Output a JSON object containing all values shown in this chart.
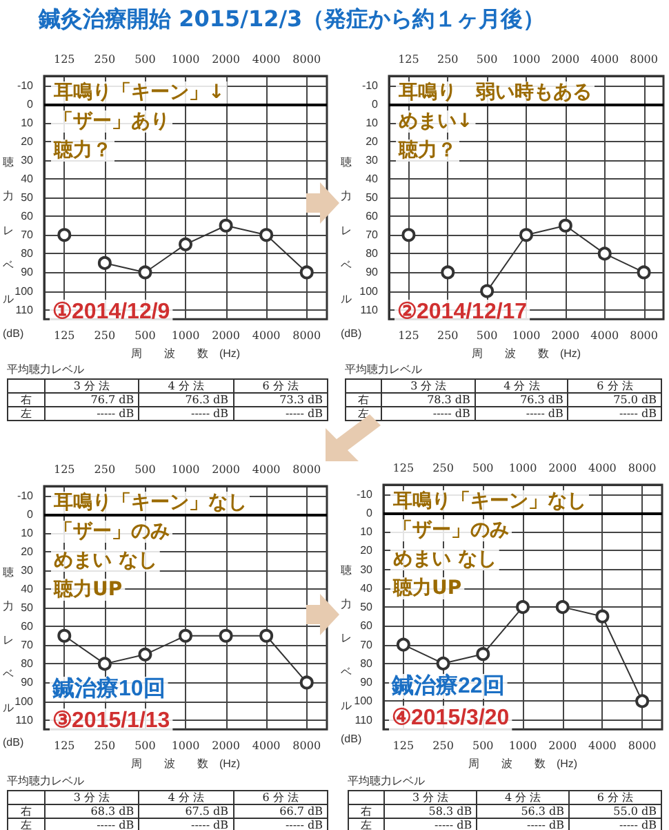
{
  "chart_data": [
    {
      "type": "other",
      "title": "鍼灸治療開始 2015/12/3（発症から約１ヶ月後）"
    },
    {
      "type": "line",
      "subtitle": "①2014/12/9",
      "xlabel": "周　　波　　数　(Hz)",
      "ylabel": "聴力レベル(dB)",
      "categories": [
        "125",
        "250",
        "500",
        "1000",
        "2000",
        "4000",
        "8000"
      ],
      "series": [
        {
          "type": "scatter",
          "color": "#333333",
          "values": [
            70,
            null,
            null,
            null,
            null,
            null,
            null
          ]
        },
        {
          "type": "line",
          "color": "#333333",
          "values": [
            null,
            85,
            90,
            75,
            65,
            70,
            90
          ]
        }
      ],
      "ylim": [
        115,
        -15
      ],
      "yticks": [
        -10,
        0,
        10,
        20,
        30,
        40,
        50,
        60,
        70,
        80,
        90,
        100,
        110
      ],
      "grid": true,
      "marker": "circle",
      "ref_lines": [
        {
          "axis": "y",
          "value": 0,
          "color": "#000000"
        }
      ],
      "annotations": [
        "耳鳴り「キーン」↓",
        "「ザー」あり",
        "聴力？"
      ]
    },
    {
      "type": "other",
      "title": "平均聴力レベル",
      "categories": [
        "3 分 法",
        "4 分 法",
        "6 分 法"
      ],
      "y_categories": [
        "右",
        "左"
      ],
      "cell_labels": [
        [
          "76.7 dB",
          "76.3 dB",
          "73.3 dB"
        ],
        [
          "----- dB",
          "----- dB",
          "----- dB"
        ]
      ]
    },
    {
      "type": "line",
      "subtitle": "②2014/12/17",
      "xlabel": "周　　波　　数　(Hz)",
      "ylabel": "聴力レベル(dB)",
      "categories": [
        "125",
        "250",
        "500",
        "1000",
        "2000",
        "4000",
        "8000"
      ],
      "series": [
        {
          "type": "scatter",
          "color": "#333333",
          "values": [
            70,
            90,
            null,
            null,
            null,
            null,
            null
          ]
        },
        {
          "type": "line",
          "color": "#333333",
          "values": [
            null,
            null,
            100,
            70,
            65,
            80,
            90
          ]
        }
      ],
      "ylim": [
        115,
        -15
      ],
      "yticks": [
        -10,
        0,
        10,
        20,
        30,
        40,
        50,
        60,
        70,
        80,
        90,
        100,
        110
      ],
      "grid": true,
      "marker": "circle",
      "ref_lines": [
        {
          "axis": "y",
          "value": 0,
          "color": "#000000"
        }
      ],
      "annotations": [
        "耳鳴り　弱い時もある",
        "めまい↓",
        "聴力？"
      ]
    },
    {
      "type": "other",
      "title": "平均聴力レベル",
      "categories": [
        "3 分 法",
        "4 分 法",
        "6 分 法"
      ],
      "y_categories": [
        "右",
        "左"
      ],
      "cell_labels": [
        [
          "78.3 dB",
          "76.3 dB",
          "75.0 dB"
        ],
        [
          "----- dB",
          "----- dB",
          "----- dB"
        ]
      ]
    },
    {
      "type": "line",
      "title": "鍼治療10回",
      "subtitle": "③2015/1/13",
      "xlabel": "周　　波　　数　(Hz)",
      "ylabel": "聴力レベル(dB)",
      "categories": [
        "125",
        "250",
        "500",
        "1000",
        "2000",
        "4000",
        "8000"
      ],
      "series": [
        {
          "type": "line",
          "color": "#333333",
          "values": [
            65,
            80,
            75,
            65,
            65,
            65,
            90
          ]
        }
      ],
      "ylim": [
        115,
        -15
      ],
      "yticks": [
        -10,
        0,
        10,
        20,
        30,
        40,
        50,
        60,
        70,
        80,
        90,
        100,
        110
      ],
      "grid": true,
      "marker": "circle",
      "ref_lines": [
        {
          "axis": "y",
          "value": 0,
          "color": "#000000"
        }
      ],
      "annotations": [
        "耳鳴り「キーン」なし",
        "「ザー」のみ",
        "めまい なし",
        "聴力UP"
      ]
    },
    {
      "type": "other",
      "title": "平均聴力レベル",
      "categories": [
        "3 分 法",
        "4 分 法",
        "6 分 法"
      ],
      "y_categories": [
        "右",
        "左"
      ],
      "cell_labels": [
        [
          "68.3 dB",
          "67.5 dB",
          "66.7 dB"
        ],
        [
          "----- dB",
          "----- dB",
          "----- dB"
        ]
      ]
    },
    {
      "type": "line",
      "title": "鍼治療22回",
      "subtitle": "④2015/3/20",
      "xlabel": "周　　波　　数　(Hz)",
      "ylabel": "聴力レベル(dB)",
      "categories": [
        "125",
        "250",
        "500",
        "1000",
        "2000",
        "4000",
        "8000"
      ],
      "series": [
        {
          "type": "line",
          "color": "#333333",
          "values": [
            70,
            80,
            75,
            50,
            50,
            55,
            100
          ]
        }
      ],
      "ylim": [
        115,
        -15
      ],
      "yticks": [
        -10,
        0,
        10,
        20,
        30,
        40,
        50,
        60,
        70,
        80,
        90,
        100,
        110
      ],
      "grid": true,
      "marker": "circle",
      "ref_lines": [
        {
          "axis": "y",
          "value": 0,
          "color": "#000000"
        }
      ],
      "annotations": [
        "耳鳴り「キーン」なし",
        "「ザー」のみ",
        "めまい なし",
        "聴力UP"
      ]
    },
    {
      "type": "other",
      "title": "平均聴力レベル",
      "categories": [
        "3 分 法",
        "4 分 法",
        "6 分 法"
      ],
      "y_categories": [
        "右",
        "左"
      ],
      "cell_labels": [
        [
          "58.3 dB",
          "56.3 dB",
          "55.0 dB"
        ],
        [
          "----- dB",
          "----- dB",
          "----- dB"
        ]
      ]
    }
  ]
}
